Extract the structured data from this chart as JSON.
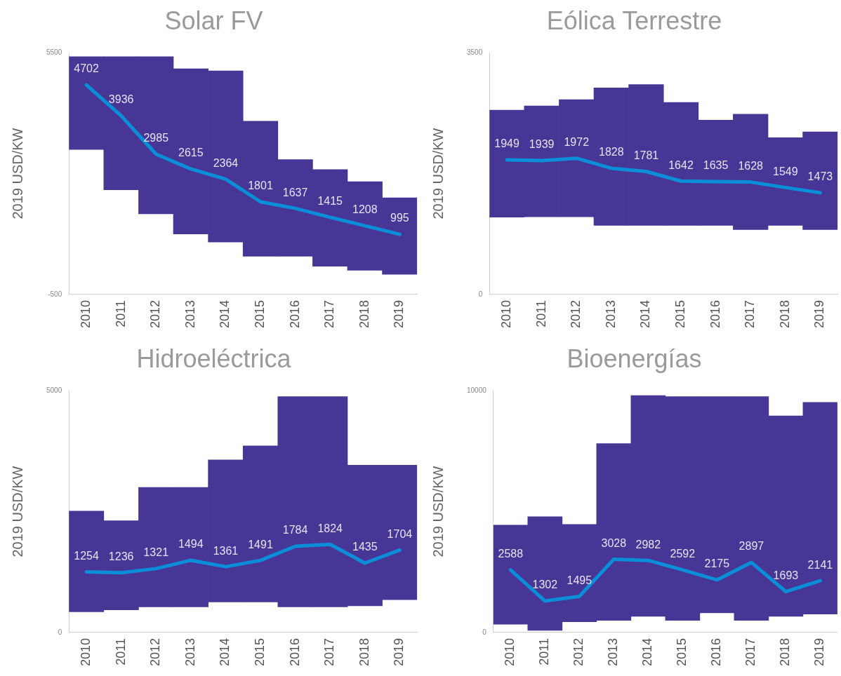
{
  "chart_data": [
    {
      "type": "bar",
      "title": "Solar FV",
      "ylabel": "2019 USD/KW",
      "categories": [
        "2010",
        "2011",
        "2012",
        "2013",
        "2014",
        "2015",
        "2016",
        "2017",
        "2018",
        "2019"
      ],
      "ylim": [
        -500,
        5500
      ],
      "yticks": [
        -500,
        5500
      ],
      "grid": false,
      "legend": false,
      "series": [
        {
          "color": "#483696",
          "base": [
            3100,
            2100,
            1500,
            1000,
            800,
            450,
            450,
            200,
            100,
            0
          ],
          "values": [
            2300,
            3300,
            3900,
            4100,
            4250,
            3350,
            2400,
            2400,
            2200,
            1900
          ]
        },
        {
          "type": "line",
          "color": "#0a8ed8",
          "values": [
            4702,
            3936,
            2985,
            2615,
            2364,
            1801,
            1637,
            1415,
            1208,
            995
          ],
          "value_labels": [
            "4702",
            "3936",
            "2985",
            "2615",
            "2364",
            "1801",
            "1637",
            "1415",
            "1208",
            "995"
          ]
        }
      ]
    },
    {
      "type": "bar",
      "title": "Eólica Terrestre",
      "ylabel": "2019 USD/KW",
      "categories": [
        "2010",
        "2011",
        "2012",
        "2013",
        "2014",
        "2015",
        "2016",
        "2017",
        "2018",
        "2019"
      ],
      "ylim": [
        0,
        3500
      ],
      "yticks": [
        0,
        3500
      ],
      "grid": false,
      "legend": false,
      "series": [
        {
          "color": "#483696",
          "base": [
            1120,
            1125,
            1125,
            1000,
            1000,
            1000,
            1000,
            940,
            1000,
            940
          ],
          "values": [
            1550,
            1605,
            1695,
            1990,
            2040,
            1780,
            1525,
            1670,
            1270,
            1415
          ]
        },
        {
          "type": "line",
          "color": "#0a8ed8",
          "values": [
            1949,
            1939,
            1972,
            1828,
            1781,
            1642,
            1635,
            1628,
            1549,
            1473
          ],
          "value_labels": [
            "1949",
            "1939",
            "1972",
            "1828",
            "1781",
            "1642",
            "1635",
            "1628",
            "1549",
            "1473"
          ]
        }
      ]
    },
    {
      "type": "bar",
      "title": "Hidroeléctrica",
      "ylabel": "2019 USD/KW",
      "categories": [
        "2010",
        "2011",
        "2012",
        "2013",
        "2014",
        "2015",
        "2016",
        "2017",
        "2018",
        "2019"
      ],
      "ylim": [
        0,
        5000
      ],
      "yticks": [
        0,
        5000
      ],
      "grid": false,
      "legend": false,
      "series": [
        {
          "color": "#483696",
          "base": [
            430,
            470,
            530,
            530,
            630,
            630,
            530,
            530,
            550,
            680
          ],
          "values": [
            2080,
            1840,
            2470,
            2470,
            2940,
            3230,
            4350,
            4350,
            2910,
            2780
          ]
        },
        {
          "type": "line",
          "color": "#0a8ed8",
          "values": [
            1254,
            1236,
            1321,
            1494,
            1361,
            1491,
            1784,
            1824,
            1435,
            1704
          ],
          "value_labels": [
            "1254",
            "1236",
            "1321",
            "1494",
            "1361",
            "1491",
            "1784",
            "1824",
            "1435",
            "1704"
          ]
        }
      ]
    },
    {
      "type": "bar",
      "title": "Bioenergías",
      "ylabel": "2019 USD/KW",
      "categories": [
        "2010",
        "2011",
        "2012",
        "2013",
        "2014",
        "2015",
        "2016",
        "2017",
        "2018",
        "2019"
      ],
      "ylim": [
        0,
        10000
      ],
      "yticks": [
        0,
        10000
      ],
      "grid": false,
      "legend": false,
      "series": [
        {
          "color": "#483696",
          "base": [
            340,
            90,
            440,
            500,
            670,
            500,
            810,
            500,
            670,
            760
          ],
          "values": [
            4100,
            4700,
            4030,
            7310,
            9130,
            9260,
            8950,
            9260,
            8290,
            8760
          ]
        },
        {
          "type": "line",
          "color": "#0a8ed8",
          "values": [
            2588,
            1302,
            1495,
            3028,
            2982,
            2592,
            2175,
            2897,
            1693,
            2141
          ],
          "value_labels": [
            "2588",
            "1302",
            "1495",
            "3028",
            "2982",
            "2592",
            "2175",
            "2897",
            "1693",
            "2141"
          ]
        }
      ]
    }
  ]
}
